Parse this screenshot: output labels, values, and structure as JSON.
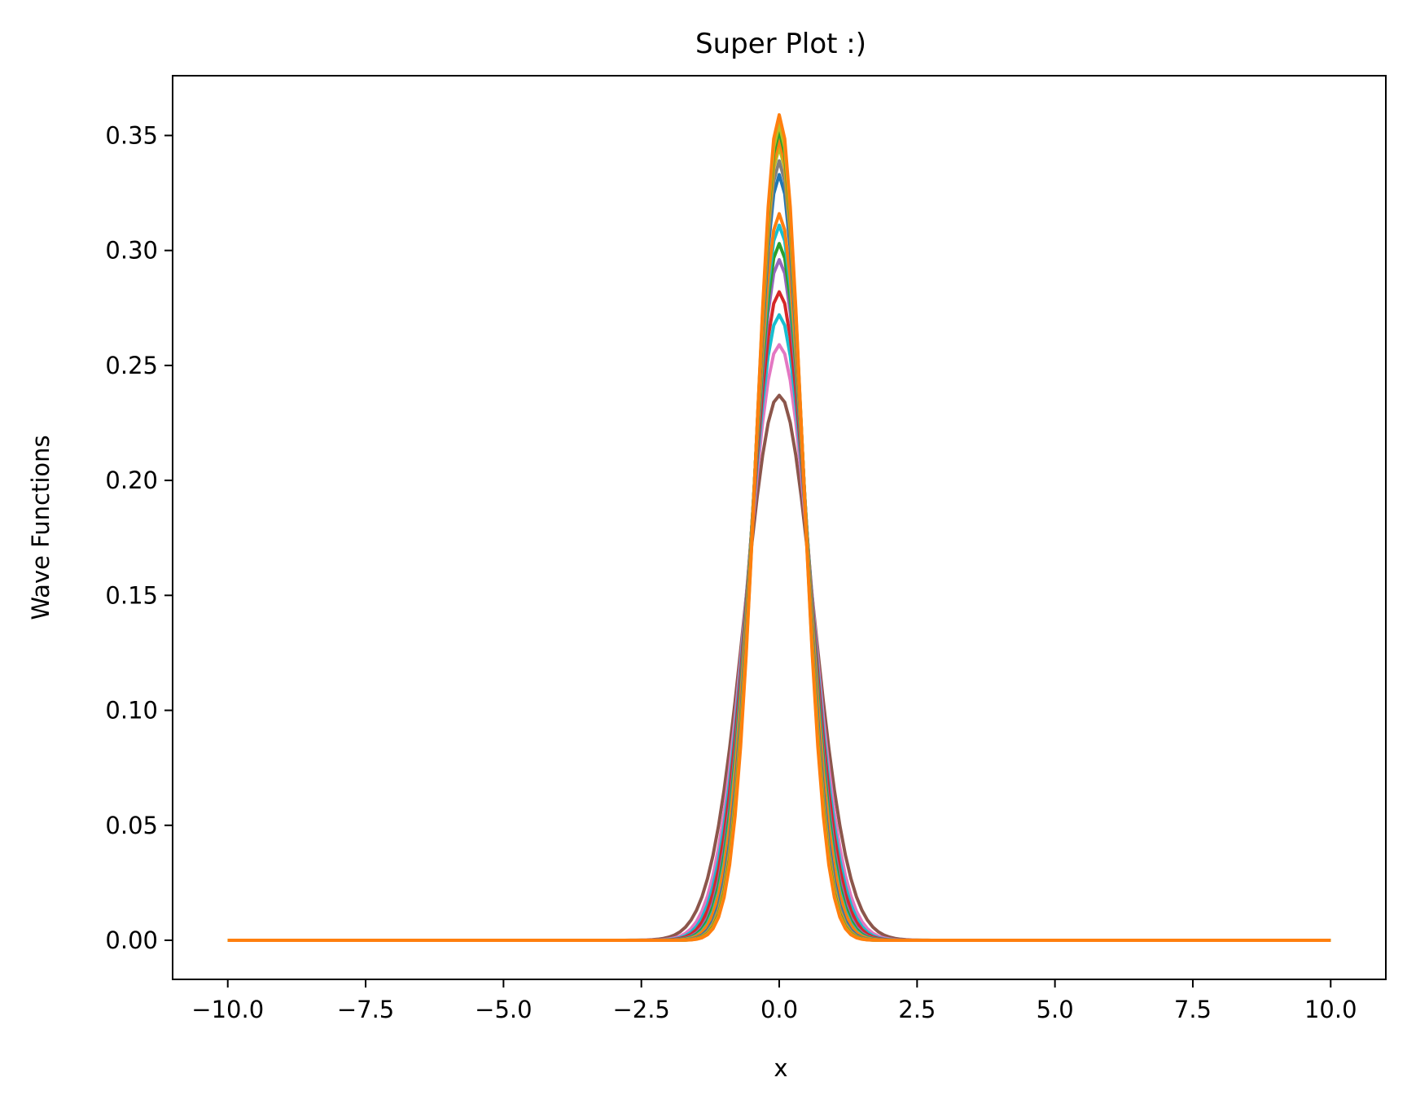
{
  "chart_data": {
    "type": "line",
    "title": "Super Plot :)",
    "xlabel": "x",
    "ylabel": "Wave Functions",
    "xlim": [
      -11.0,
      11.0
    ],
    "ylim": [
      -0.017,
      0.376
    ],
    "xticks": [
      -10.0,
      -7.5,
      -5.0,
      -2.5,
      0.0,
      2.5,
      5.0,
      7.5,
      10.0
    ],
    "xtick_labels": [
      "−10.0",
      "−7.5",
      "−5.0",
      "−2.5",
      "0.0",
      "2.5",
      "5.0",
      "7.5",
      "10.0"
    ],
    "yticks": [
      0.0,
      0.05,
      0.1,
      0.15,
      0.2,
      0.25,
      0.3,
      0.35
    ],
    "ytick_labels": [
      "0.00",
      "0.05",
      "0.10",
      "0.15",
      "0.20",
      "0.25",
      "0.30",
      "0.35"
    ],
    "grid": false,
    "legend": false,
    "x_range": [
      -10.0,
      10.0
    ],
    "curve_shape": "gaussian",
    "series": [
      {
        "peak": 0.237,
        "color": "#8c564b"
      },
      {
        "peak": 0.259,
        "color": "#e377c2"
      },
      {
        "peak": 0.272,
        "color": "#17becf"
      },
      {
        "peak": 0.282,
        "color": "#d62728"
      },
      {
        "peak": 0.296,
        "color": "#9467bd"
      },
      {
        "peak": 0.303,
        "color": "#2ca02c"
      },
      {
        "peak": 0.311,
        "color": "#17becf"
      },
      {
        "peak": 0.316,
        "color": "#ff7f0e"
      },
      {
        "peak": 0.333,
        "color": "#1f77b4"
      },
      {
        "peak": 0.339,
        "color": "#7f7f7f"
      },
      {
        "peak": 0.345,
        "color": "#bcbd22"
      },
      {
        "peak": 0.348,
        "color": "#ff7f0e"
      },
      {
        "peak": 0.352,
        "color": "#2ca02c"
      },
      {
        "peak": 0.355,
        "color": "#bcbd22"
      },
      {
        "peak": 0.359,
        "color": "#ff7f0e"
      }
    ]
  }
}
